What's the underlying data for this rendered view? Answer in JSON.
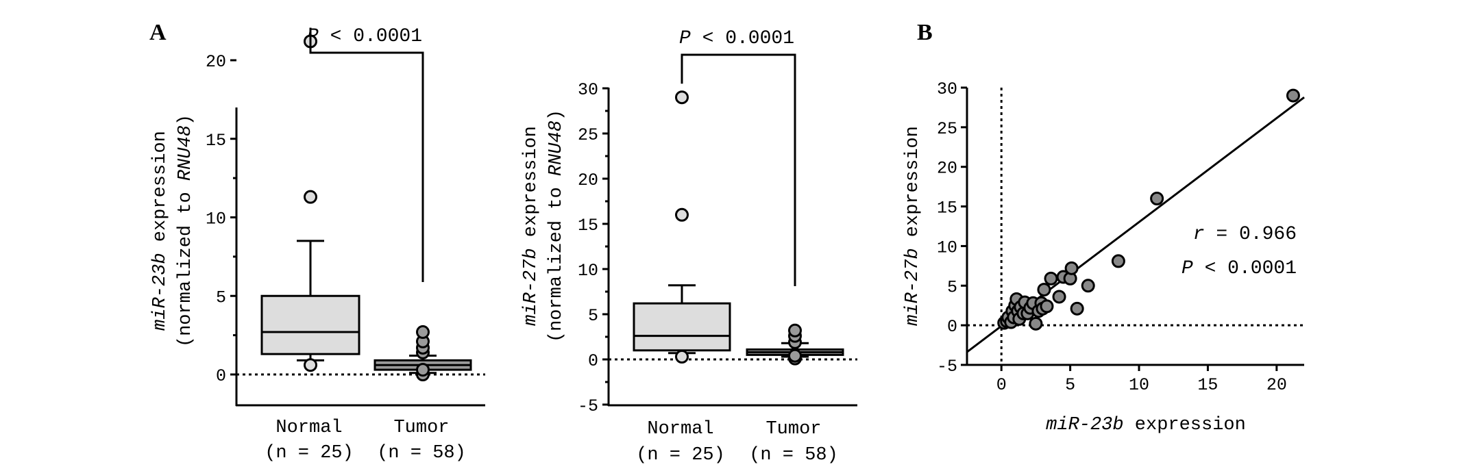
{
  "panels": {
    "A": "A",
    "B": "B"
  },
  "chart_data": [
    {
      "type": "box",
      "panel": "A",
      "ylabel_line1": [
        "miR-23b",
        " expression"
      ],
      "ylabel_line2": [
        "(normalized to ",
        "RNU48",
        ")"
      ],
      "yticks": [
        "0",
        "5",
        "10",
        "15",
        "20"
      ],
      "ylim": [
        -5,
        21
      ],
      "categories": [
        {
          "name": "Normal",
          "n": "(n = 25)"
        },
        {
          "name": "Tumor",
          "n": "(n = 58)"
        }
      ],
      "significance": [
        "P",
        " < 0.0001"
      ],
      "boxes": [
        {
          "category": "Normal",
          "whisker_low": 0.9,
          "q1": 1.3,
          "median": 2.7,
          "q3": 5.0,
          "whisker_high": 8.5,
          "outliers": [
            0.6,
            11.3,
            21.2
          ],
          "color": "#dddddd"
        },
        {
          "category": "Tumor",
          "whisker_low": 0.1,
          "q1": 0.3,
          "median": 0.6,
          "q3": 0.9,
          "whisker_high": 1.2,
          "outliers": [
            0.0,
            0.3,
            1.4,
            1.7,
            2.1,
            2.7
          ],
          "color": "#9a9a9a"
        }
      ],
      "zero_line": 0
    },
    {
      "type": "box",
      "panel": "A",
      "ylabel_line1": [
        "miR-27b",
        " expression"
      ],
      "ylabel_line2": [
        "(normalized to ",
        "RNU48",
        ")"
      ],
      "yticks": [
        "-5",
        "0",
        "5",
        "10",
        "15",
        "20",
        "25",
        "30"
      ],
      "ylim": [
        -5,
        30
      ],
      "categories": [
        {
          "name": "Normal",
          "n": "(n = 25)"
        },
        {
          "name": "Tumor",
          "n": "(n = 58)"
        }
      ],
      "significance": [
        "P",
        " < 0.0001"
      ],
      "boxes": [
        {
          "category": "Normal",
          "whisker_low": 0.7,
          "q1": 1.0,
          "median": 2.6,
          "q3": 6.2,
          "whisker_high": 8.2,
          "outliers": [
            0.3,
            16.0,
            29.0
          ],
          "color": "#dddddd"
        },
        {
          "category": "Tumor",
          "whisker_low": 0.3,
          "q1": 0.5,
          "median": 0.8,
          "q3": 1.1,
          "whisker_high": 1.8,
          "outliers": [
            0.1,
            0.4,
            1.9,
            2.6,
            3.2
          ],
          "color": "#9a9a9a"
        }
      ],
      "zero_line": 0
    },
    {
      "type": "scatter",
      "panel": "B",
      "xlabel": [
        "miR-23b",
        " expression"
      ],
      "ylabel": [
        "miR-27b",
        " expression"
      ],
      "xticks": [
        "0",
        "5",
        "10",
        "15",
        "20"
      ],
      "yticks": [
        "-5",
        "0",
        "5",
        "10",
        "15",
        "20",
        "25",
        "30"
      ],
      "xlim": [
        -2.5,
        22
      ],
      "ylim": [
        -5,
        30
      ],
      "stats": {
        "r": [
          "r",
          " = 0.966"
        ],
        "p": [
          "P",
          " < 0.0001"
        ]
      },
      "regression": {
        "slope": 1.33,
        "intercept": -0.05
      },
      "point_color": "#888888",
      "points": [
        [
          0.2,
          0.3
        ],
        [
          0.4,
          0.5
        ],
        [
          0.5,
          1.0
        ],
        [
          0.7,
          0.4
        ],
        [
          0.8,
          1.8
        ],
        [
          0.9,
          1.0
        ],
        [
          1.0,
          2.5
        ],
        [
          1.1,
          3.3
        ],
        [
          1.2,
          1.8
        ],
        [
          1.3,
          0.8
        ],
        [
          1.4,
          2.3
        ],
        [
          1.6,
          1.5
        ],
        [
          1.7,
          2.9
        ],
        [
          1.9,
          1.5
        ],
        [
          2.1,
          2.2
        ],
        [
          2.3,
          2.8
        ],
        [
          2.5,
          0.2
        ],
        [
          2.7,
          1.8
        ],
        [
          2.9,
          2.8
        ],
        [
          3.0,
          2.1
        ],
        [
          3.1,
          4.5
        ],
        [
          3.3,
          2.4
        ],
        [
          3.6,
          5.9
        ],
        [
          4.2,
          3.6
        ],
        [
          4.5,
          6.1
        ],
        [
          5.0,
          5.9
        ],
        [
          5.1,
          7.2
        ],
        [
          5.5,
          2.1
        ],
        [
          6.3,
          5.0
        ],
        [
          8.5,
          8.1
        ],
        [
          11.3,
          16.0
        ],
        [
          21.2,
          29.0
        ]
      ]
    }
  ]
}
